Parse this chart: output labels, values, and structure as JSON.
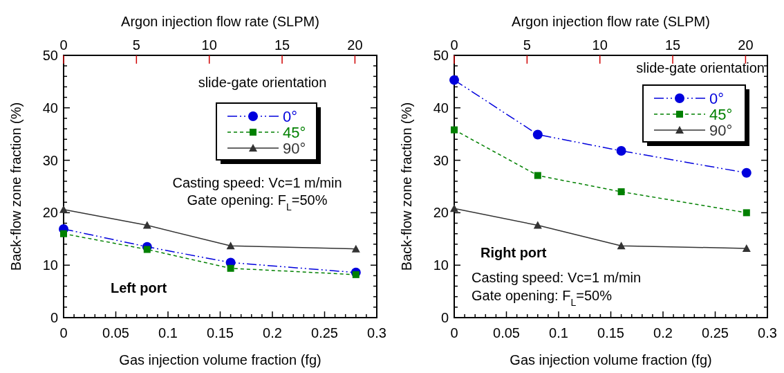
{
  "chart_data": [
    {
      "type": "line",
      "xlabel": "Gas injection volume fraction (fg)",
      "ylabel": "Back-flow zone fraction (%)",
      "x2label": "Argon injection flow rate (SLPM)",
      "legend_title": "slide-gate orientation",
      "legend": "top right",
      "annotations": [
        "Left port",
        "Casting speed: Vc=1 m/min",
        "Gate opening:  F$_{L}$=50%"
      ],
      "x": [
        0,
        0.08,
        0.16,
        0.28
      ],
      "xlim": [
        0,
        0.3
      ],
      "ylim": [
        0,
        50
      ],
      "xticks": [
        0,
        {
          "value": 0.01,
          "label": null
        },
        {
          "value": 0.02,
          "label": null
        },
        {
          "value": 0.03,
          "label": null
        },
        {
          "value": 0.04,
          "label": null
        },
        0.05,
        {
          "value": 0.06,
          "label": null
        },
        {
          "value": 0.07,
          "label": null
        },
        {
          "value": 0.08,
          "label": null
        },
        {
          "value": 0.09,
          "label": null
        },
        0.1,
        {
          "value": 0.11,
          "label": null
        },
        {
          "value": 0.12,
          "label": null
        },
        {
          "value": 0.13,
          "label": null
        },
        {
          "value": 0.14,
          "label": null
        },
        0.15,
        {
          "value": 0.16,
          "label": null
        },
        {
          "value": 0.17,
          "label": null
        },
        {
          "value": 0.18,
          "label": null
        },
        {
          "value": 0.19,
          "label": null
        },
        0.2,
        {
          "value": 0.21,
          "label": null
        },
        {
          "value": 0.22,
          "label": null
        },
        {
          "value": 0.23,
          "label": null
        },
        {
          "value": 0.24,
          "label": null
        },
        0.25,
        {
          "value": 0.26,
          "label": null
        },
        {
          "value": 0.27,
          "label": null
        },
        {
          "value": 0.28,
          "label": null
        },
        {
          "value": 0.29,
          "label": null
        },
        0.3
      ],
      "yticks": [
        0,
        {
          "value": 2,
          "label": null
        },
        {
          "value": 4,
          "label": null
        },
        {
          "value": 6,
          "label": null
        },
        {
          "value": 8,
          "label": null
        },
        10,
        {
          "value": 12,
          "label": null
        },
        {
          "value": 14,
          "label": null
        },
        {
          "value": 16,
          "label": null
        },
        {
          "value": 18,
          "label": null
        },
        20,
        {
          "value": 22,
          "label": null
        },
        {
          "value": 24,
          "label": null
        },
        {
          "value": 26,
          "label": null
        },
        {
          "value": 28,
          "label": null
        },
        30,
        {
          "value": 32,
          "label": null
        },
        {
          "value": 34,
          "label": null
        },
        {
          "value": 36,
          "label": null
        },
        {
          "value": 38,
          "label": null
        },
        40,
        {
          "value": 42,
          "label": null
        },
        {
          "value": 44,
          "label": null
        },
        {
          "value": 46,
          "label": null
        },
        {
          "value": 48,
          "label": null
        },
        50
      ],
      "x2lim": [
        0,
        21.5
      ],
      "x2ticks": [
        0,
        5,
        10,
        15,
        20
      ],
      "series": [
        {
          "name": "0°",
          "color": "#0000dd",
          "line_style": "dashdotdot",
          "marker": "circle",
          "values": [
            16.9,
            13.5,
            10.5,
            8.6
          ]
        },
        {
          "name": "45°",
          "color": "#008000",
          "line_style": "dashed",
          "marker": "square",
          "values": [
            16.0,
            13.0,
            9.4,
            8.2
          ]
        },
        {
          "name": "90°",
          "color": "#333333",
          "line_style": "solid",
          "marker": "triangle",
          "values": [
            20.6,
            17.6,
            13.7,
            13.1
          ]
        }
      ]
    },
    {
      "type": "line",
      "xlabel": "Gas injection volume fraction (fg)",
      "ylabel": "Back-flow zone fraction (%)",
      "x2label": "Argon injection flow rate (SLPM)",
      "legend_title": "slide-gate orientation",
      "legend": "top right",
      "annotations": [
        "Right port",
        "Casting speed: Vc=1 m/min",
        "Gate opening:  F$_{L}$=50%"
      ],
      "x": [
        0,
        0.08,
        0.16,
        0.28
      ],
      "xlim": [
        0,
        0.3
      ],
      "ylim": [
        0,
        50
      ],
      "xticks": [
        0,
        {
          "value": 0.01,
          "label": null
        },
        {
          "value": 0.02,
          "label": null
        },
        {
          "value": 0.03,
          "label": null
        },
        {
          "value": 0.04,
          "label": null
        },
        0.05,
        {
          "value": 0.06,
          "label": null
        },
        {
          "value": 0.07,
          "label": null
        },
        {
          "value": 0.08,
          "label": null
        },
        {
          "value": 0.09,
          "label": null
        },
        0.1,
        {
          "value": 0.11,
          "label": null
        },
        {
          "value": 0.12,
          "label": null
        },
        {
          "value": 0.13,
          "label": null
        },
        {
          "value": 0.14,
          "label": null
        },
        0.15,
        {
          "value": 0.16,
          "label": null
        },
        {
          "value": 0.17,
          "label": null
        },
        {
          "value": 0.18,
          "label": null
        },
        {
          "value": 0.19,
          "label": null
        },
        0.2,
        {
          "value": 0.21,
          "label": null
        },
        {
          "value": 0.22,
          "label": null
        },
        {
          "value": 0.23,
          "label": null
        },
        {
          "value": 0.24,
          "label": null
        },
        0.25,
        {
          "value": 0.26,
          "label": null
        },
        {
          "value": 0.27,
          "label": null
        },
        {
          "value": 0.28,
          "label": null
        },
        {
          "value": 0.29,
          "label": null
        },
        0.3
      ],
      "yticks": [
        0,
        {
          "value": 2,
          "label": null
        },
        {
          "value": 4,
          "label": null
        },
        {
          "value": 6,
          "label": null
        },
        {
          "value": 8,
          "label": null
        },
        10,
        {
          "value": 12,
          "label": null
        },
        {
          "value": 14,
          "label": null
        },
        {
          "value": 16,
          "label": null
        },
        {
          "value": 18,
          "label": null
        },
        20,
        {
          "value": 22,
          "label": null
        },
        {
          "value": 24,
          "label": null
        },
        {
          "value": 26,
          "label": null
        },
        {
          "value": 28,
          "label": null
        },
        30,
        {
          "value": 32,
          "label": null
        },
        {
          "value": 34,
          "label": null
        },
        {
          "value": 36,
          "label": null
        },
        {
          "value": 38,
          "label": null
        },
        40,
        {
          "value": 42,
          "label": null
        },
        {
          "value": 44,
          "label": null
        },
        {
          "value": 46,
          "label": null
        },
        {
          "value": 48,
          "label": null
        },
        50
      ],
      "x2lim": [
        0,
        21.5
      ],
      "x2ticks": [
        0,
        5,
        10,
        15,
        20
      ],
      "series": [
        {
          "name": "0°",
          "color": "#0000dd",
          "line_style": "dashdotdot",
          "marker": "circle",
          "values": [
            45.3,
            34.9,
            31.8,
            27.6
          ]
        },
        {
          "name": "45°",
          "color": "#008000",
          "line_style": "dashed",
          "marker": "square",
          "values": [
            35.8,
            27.1,
            24.0,
            20.0
          ]
        },
        {
          "name": "90°",
          "color": "#333333",
          "line_style": "solid",
          "marker": "triangle",
          "values": [
            20.8,
            17.6,
            13.7,
            13.2
          ]
        }
      ]
    }
  ]
}
